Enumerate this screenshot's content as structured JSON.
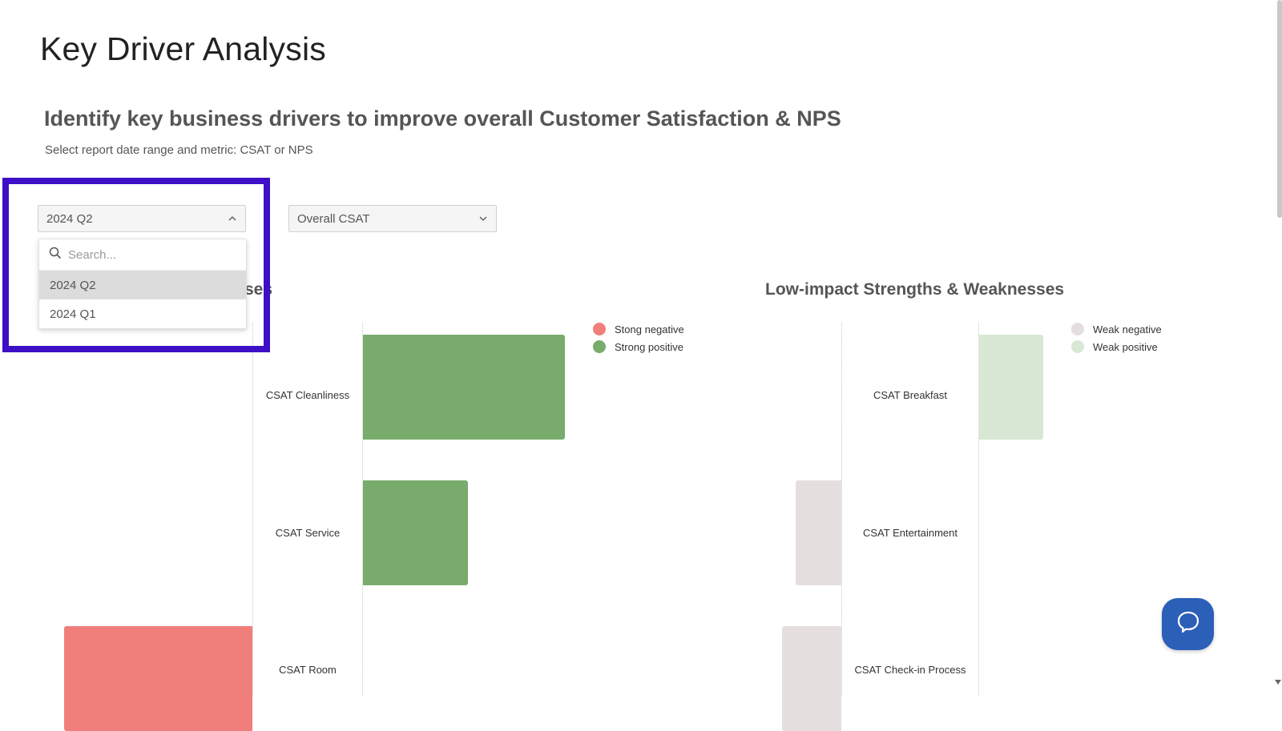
{
  "page": {
    "title": "Key Driver Analysis",
    "subtitle": "Identify key business drivers to improve overall Customer Satisfaction & NPS",
    "description": "Select report date range and metric: CSAT or NPS"
  },
  "filters": {
    "period": {
      "selected": "2024 Q2",
      "search_placeholder": "Search...",
      "options": [
        "2024 Q2",
        "2024 Q1"
      ]
    },
    "metric": {
      "selected": "Overall CSAT"
    }
  },
  "left_chart": {
    "title_fragment": "ses",
    "legend": [
      {
        "label": "Stong negative",
        "color": "#f07f7c"
      },
      {
        "label": "Strong positive",
        "color": "#78ab6c"
      }
    ]
  },
  "right_chart": {
    "title": "Low-impact Strengths & Weaknesses",
    "legend": [
      {
        "label": "Weak negative",
        "color": "#e5dedf"
      },
      {
        "label": "Weak positive",
        "color": "#d9e7d5"
      }
    ]
  },
  "chart_data": [
    {
      "type": "bar",
      "categories": [
        "CSAT Cleanliness",
        "CSAT Service",
        "CSAT Room"
      ],
      "series": [
        {
          "name": "Stong negative",
          "values": [
            0,
            0,
            -0.94
          ]
        },
        {
          "name": "Strong positive",
          "values": [
            1.0,
            0.52,
            0
          ]
        }
      ]
    },
    {
      "type": "bar",
      "categories": [
        "CSAT Breakfast",
        "CSAT Entertainment",
        "CSAT Check-in Process"
      ],
      "series": [
        {
          "name": "Weak negative",
          "values": [
            0,
            -0.71,
            -0.92
          ]
        },
        {
          "name": "Weak positive",
          "values": [
            1.0,
            0,
            0
          ]
        }
      ]
    }
  ]
}
